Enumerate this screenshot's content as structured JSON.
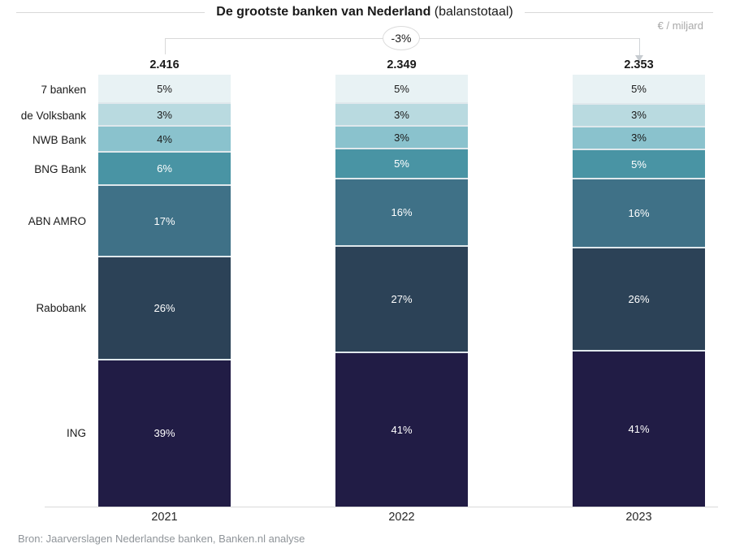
{
  "title": {
    "main": "De grootste banken van Nederland",
    "suffix": " (balanstotaal)"
  },
  "unit_label": "€ / miljard",
  "annotation": {
    "label": "-3%",
    "from": "2021",
    "to": "2023"
  },
  "source": "Bron: Jaarverslagen Nederlandse banken, Banken.nl analyse",
  "colors": {
    "rule_gray": "#d9d9d9",
    "muted_text": "#a8a8a8",
    "source_text": "#8f9499",
    "segment_separator": "#dfe8ec"
  },
  "chart_data": {
    "type": "bar",
    "variant": "100%-stacked-column",
    "title": "De grootste banken van Nederland (balanstotaal)",
    "unit": "€ / miljard",
    "categories": [
      "2021",
      "2022",
      "2023"
    ],
    "totals": [
      "2.416",
      "2.349",
      "2.353"
    ],
    "change_annotation": {
      "label": "-3%",
      "from_category": "2021",
      "to_category": "2023"
    },
    "legend_position": "left-axis-labels",
    "grid": false,
    "series": [
      {
        "name": "7 banken",
        "values": [
          5,
          5,
          5
        ],
        "color": "#e8f2f4",
        "label_color": "#1a1a1a"
      },
      {
        "name": "de Volksbank",
        "values": [
          3,
          3,
          3
        ],
        "color": "#b9dae0",
        "label_color": "#1a1a1a"
      },
      {
        "name": "NWB Bank",
        "values": [
          4,
          3,
          3
        ],
        "color": "#8ac2cd",
        "label_color": "#1a1a1a"
      },
      {
        "name": "BNG Bank",
        "values": [
          6,
          5,
          5
        ],
        "color": "#4994a4",
        "label_color": "#ffffff"
      },
      {
        "name": "ABN AMRO",
        "values": [
          17,
          16,
          16
        ],
        "color": "#3f7187",
        "label_color": "#ffffff"
      },
      {
        "name": "Rabobank",
        "values": [
          26,
          27,
          26
        ],
        "color": "#2c4257",
        "label_color": "#ffffff"
      },
      {
        "name": "ING",
        "values": [
          39,
          41,
          41
        ],
        "color": "#211c45",
        "label_color": "#ffffff"
      }
    ],
    "value_suffix": "%"
  }
}
